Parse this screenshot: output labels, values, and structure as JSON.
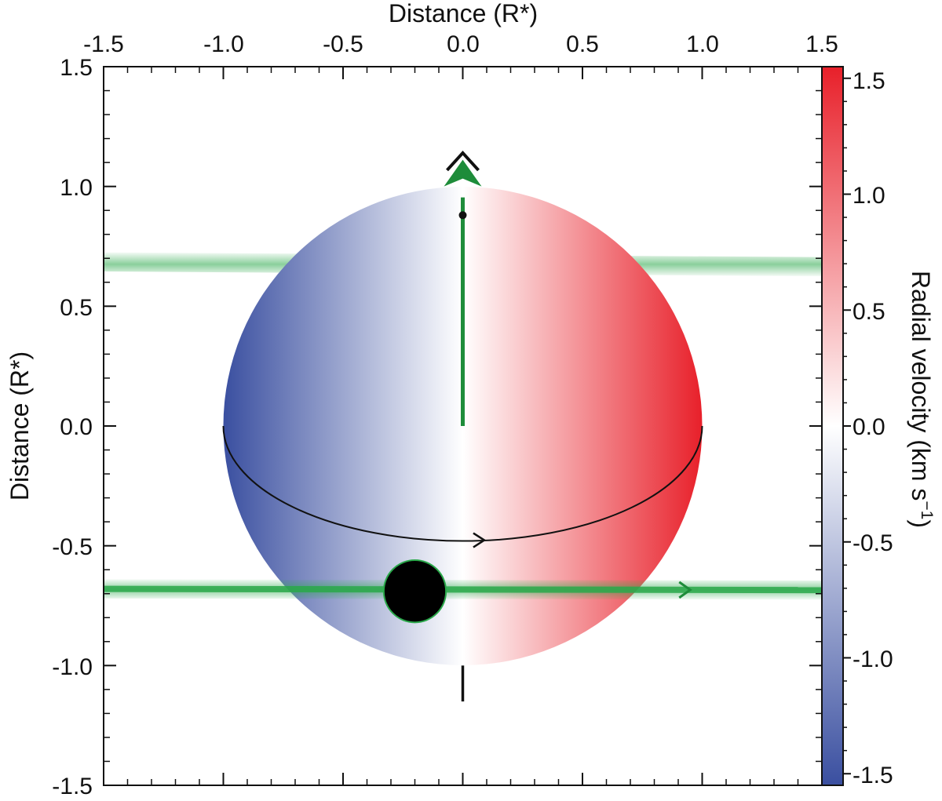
{
  "chart_data": {
    "type": "scatter",
    "title": "",
    "top_axis": {
      "label": "Distance (R*)",
      "ticks": [
        "-1.5",
        "-1.0",
        "-0.5",
        "0.0",
        "0.5",
        "1.0",
        "1.5"
      ],
      "range": [
        -1.5,
        1.5
      ]
    },
    "left_axis": {
      "label": "Distance (R*)",
      "ticks": [
        "1.5",
        "1.0",
        "0.5",
        "0.0",
        "-0.5",
        "-1.0",
        "-1.5"
      ],
      "range": [
        -1.5,
        1.5
      ]
    },
    "colorbar": {
      "label": "Radial velocity (km s",
      "label_exponent": "−1",
      "label_close": ")",
      "ticks": [
        "1.5",
        "1.0",
        "0.5",
        "0.0",
        "-0.5",
        "-1.0",
        "-1.5"
      ],
      "range": [
        -1.55,
        1.55
      ],
      "color_min": "#3a4fa0",
      "color_mid": "#ffffff",
      "color_max": "#e8202a"
    },
    "star": {
      "center": [
        0.0,
        0.0
      ],
      "radius": 1.0,
      "rotation_colors": {
        "blue_side": "#3a4fa0",
        "red_side": "#e8202a"
      }
    },
    "stellar_spin_axis": {
      "color": "#1e8c3a",
      "from": [
        0.0,
        0.0
      ],
      "to": [
        0.0,
        1.0
      ],
      "dot": [
        0.0,
        0.88
      ]
    },
    "sky_projected_axis_marker": {
      "top_y": 1.14,
      "bottom_y": -1.15,
      "color": "#111111"
    },
    "equator": {
      "color": "#111111",
      "lowest_y": -0.48
    },
    "planet": {
      "x": -0.2,
      "y": -0.69,
      "radius": 0.13,
      "color": "#000000"
    },
    "transit_chord": {
      "color": "#2aa84a",
      "y_left": -0.68,
      "y_right": -0.685,
      "band_width": 0.04
    },
    "orbit_back_band": {
      "color": "#2aa84a",
      "y_left": 0.685,
      "y_right": 0.665
    },
    "grid": false
  }
}
